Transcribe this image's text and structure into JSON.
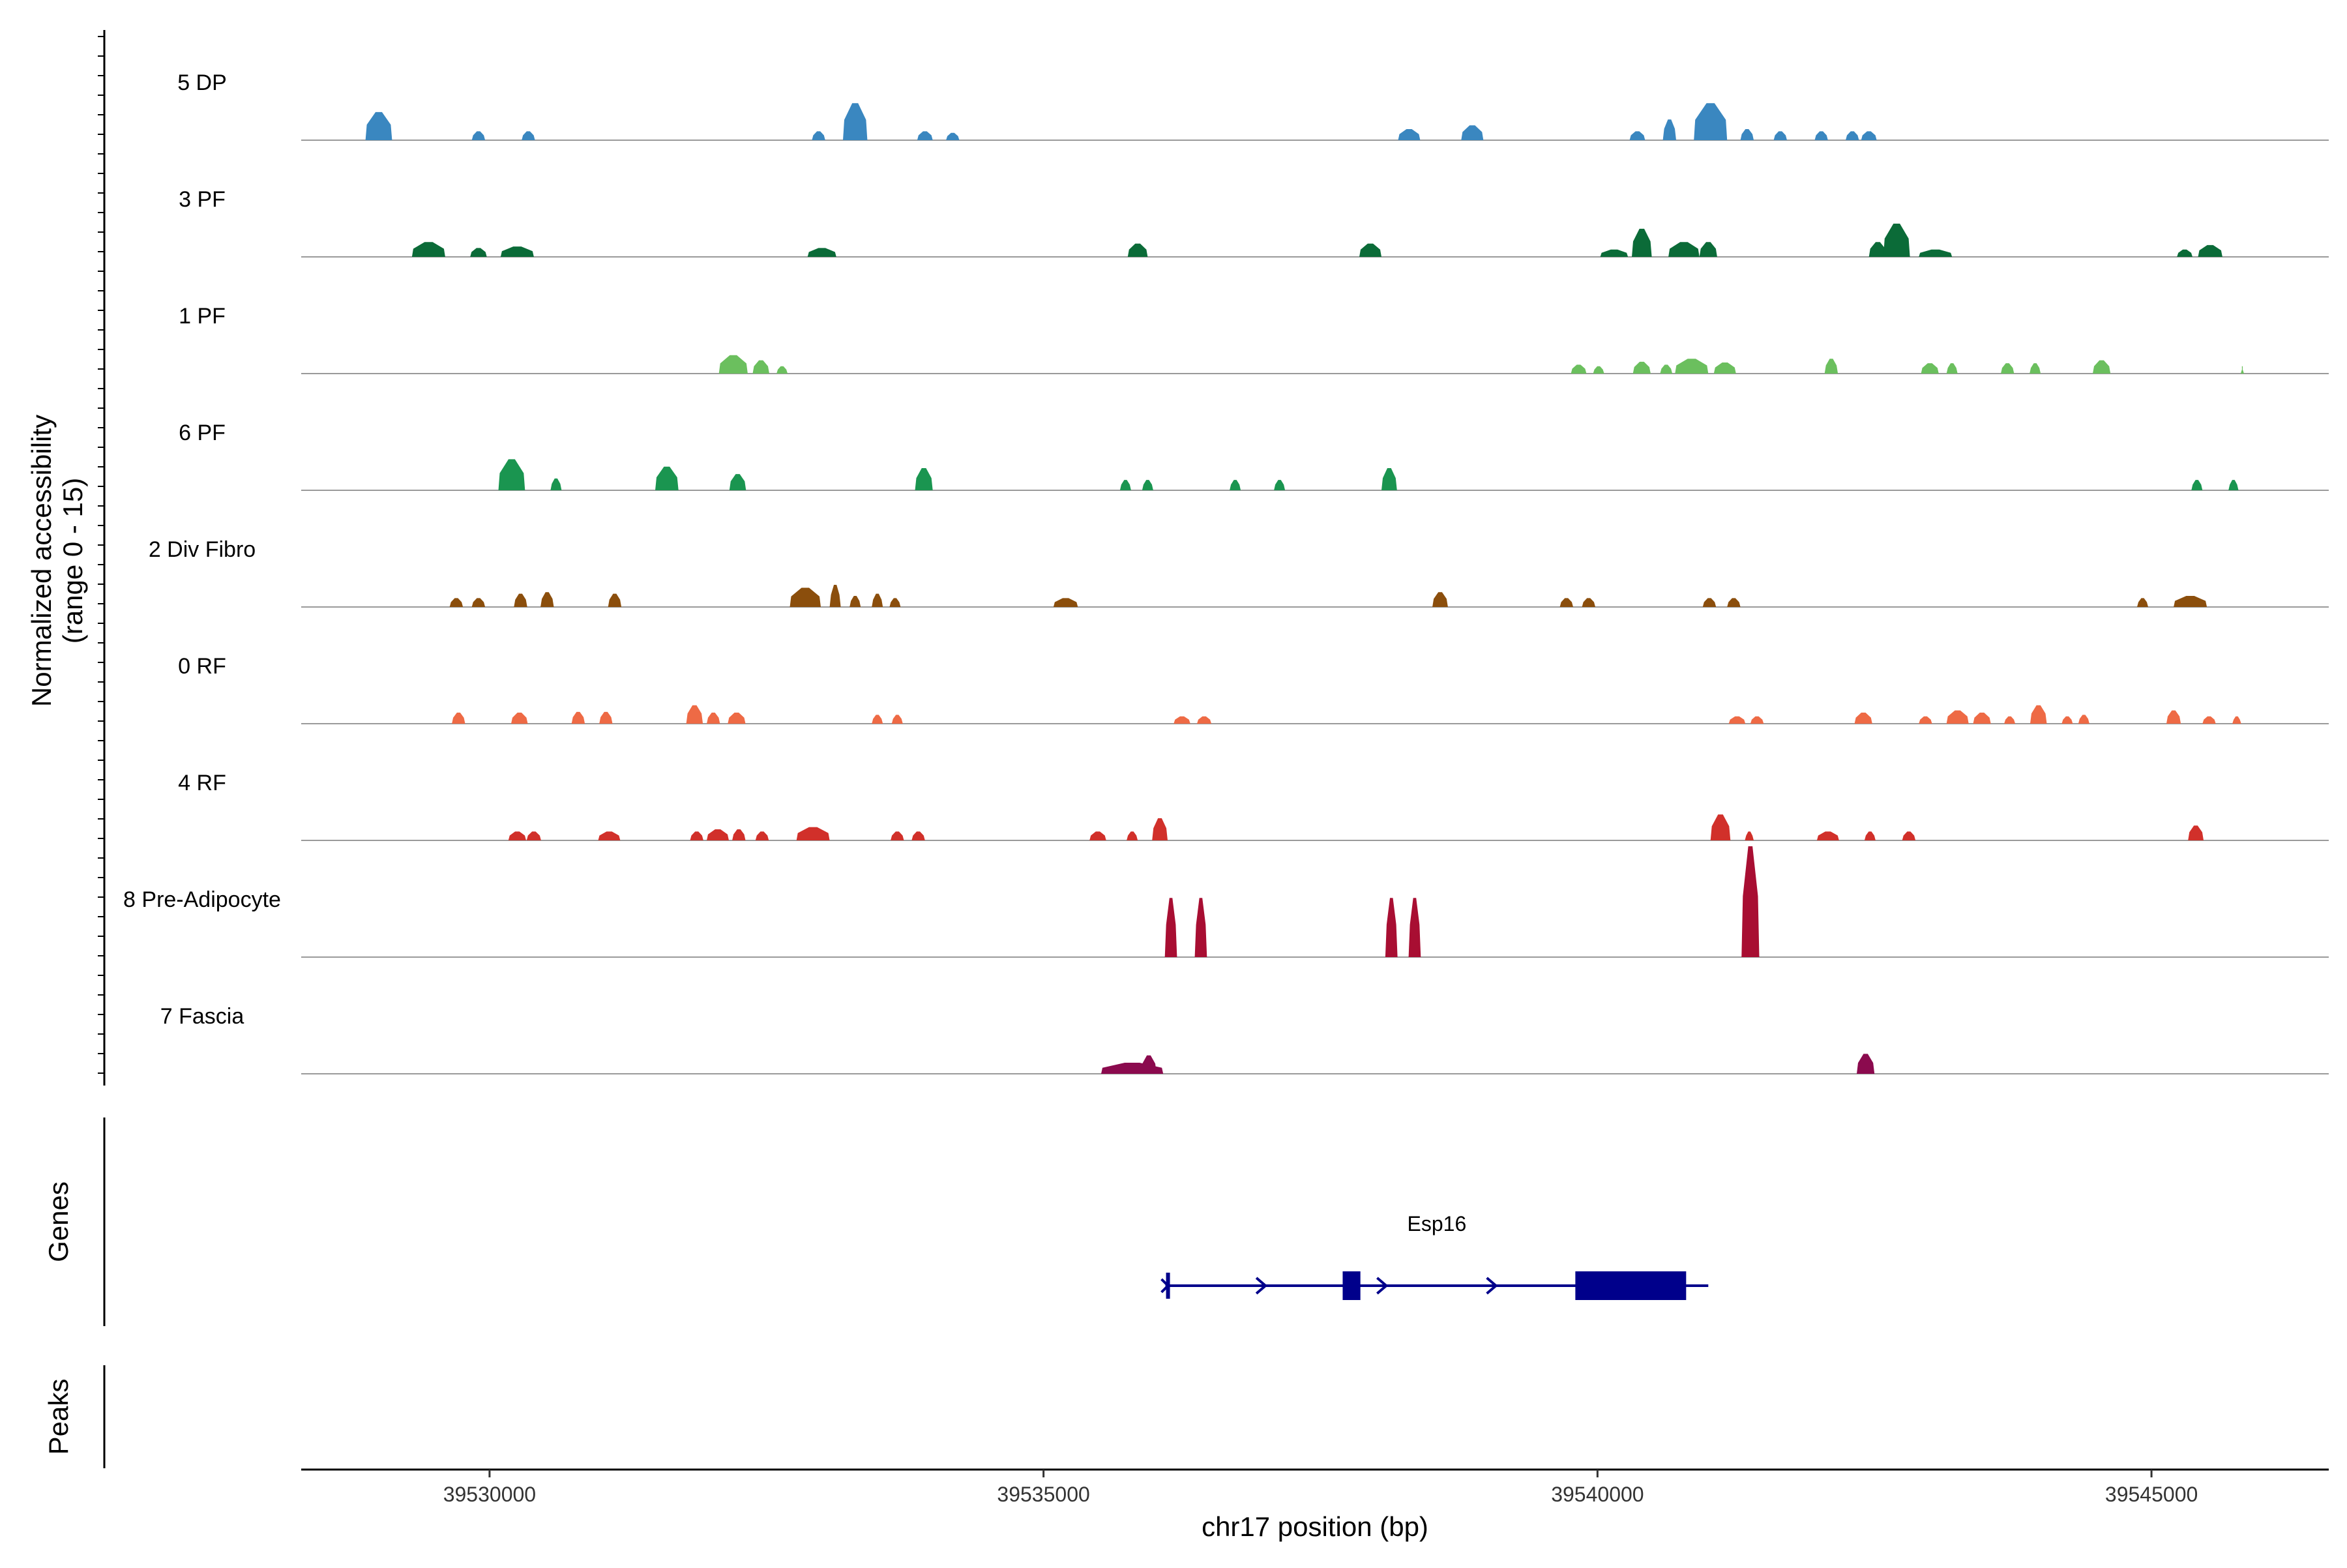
{
  "chart_data": {
    "type": "coverage",
    "title": "",
    "ylabel": "Normalized accessibility\n(range 0 - 15)",
    "xlabel": "chr17 position (bp)",
    "ylim": [
      0,
      15
    ],
    "xlim": [
      39528300,
      39546600
    ],
    "x_ticks": [
      39530000,
      39535000,
      39540000,
      39545000
    ],
    "x_tick_labels": [
      "39530000",
      "39535000",
      "39540000",
      "39545000"
    ],
    "tracks": [
      {
        "name": "5 DP",
        "color": "#3A87C0",
        "peaks": [
          [
            39529000,
            240,
            3.8
          ],
          [
            39529900,
            120,
            1.2
          ],
          [
            39530350,
            120,
            1.2
          ],
          [
            39532970,
            120,
            1.2
          ],
          [
            39533300,
            220,
            5.0
          ],
          [
            39533930,
            140,
            1.2
          ],
          [
            39534180,
            120,
            1.0
          ],
          [
            39538300,
            200,
            1.5
          ],
          [
            39538870,
            200,
            2.0
          ],
          [
            39540360,
            140,
            1.2
          ],
          [
            39540650,
            120,
            2.8
          ],
          [
            39541020,
            300,
            5.0
          ],
          [
            39541350,
            120,
            1.5
          ],
          [
            39541650,
            120,
            1.2
          ],
          [
            39542020,
            120,
            1.2
          ],
          [
            39542300,
            120,
            1.2
          ],
          [
            39542450,
            140,
            1.2
          ]
        ]
      },
      {
        "name": "3 PF",
        "color": "#0B6B38",
        "peaks": [
          [
            39529450,
            300,
            2.0
          ],
          [
            39529900,
            150,
            1.2
          ],
          [
            39530250,
            300,
            1.4
          ],
          [
            39533000,
            260,
            1.2
          ],
          [
            39535850,
            180,
            1.8
          ],
          [
            39537950,
            200,
            1.8
          ],
          [
            39540150,
            250,
            1.0
          ],
          [
            39540400,
            180,
            3.8
          ],
          [
            39540780,
            280,
            2.0
          ],
          [
            39541000,
            160,
            2.0
          ],
          [
            39542530,
            160,
            2.0
          ],
          [
            39542700,
            240,
            4.5
          ],
          [
            39543050,
            300,
            1.0
          ],
          [
            39545300,
            140,
            1.0
          ],
          [
            39545530,
            220,
            1.6
          ]
        ]
      },
      {
        "name": "1 PF",
        "color": "#6BBF5E",
        "peaks": [
          [
            39532200,
            260,
            2.5
          ],
          [
            39532450,
            150,
            1.8
          ],
          [
            39532640,
            100,
            1.0
          ],
          [
            39539830,
            140,
            1.2
          ],
          [
            39540010,
            100,
            1.0
          ],
          [
            39540400,
            160,
            1.6
          ],
          [
            39540620,
            110,
            1.2
          ],
          [
            39540850,
            300,
            2.0
          ],
          [
            39541150,
            200,
            1.5
          ],
          [
            39542110,
            120,
            2.0
          ],
          [
            39543000,
            160,
            1.4
          ],
          [
            39543200,
            100,
            1.4
          ],
          [
            39543700,
            120,
            1.4
          ],
          [
            39543950,
            100,
            1.4
          ],
          [
            39544550,
            160,
            1.8
          ],
          [
            39545820,
            30,
            1.0
          ]
        ]
      },
      {
        "name": "6 PF",
        "color": "#1A9550",
        "peaks": [
          [
            39530200,
            240,
            4.2
          ],
          [
            39530600,
            100,
            1.6
          ],
          [
            39531600,
            210,
            3.2
          ],
          [
            39532240,
            150,
            2.2
          ],
          [
            39533920,
            160,
            3.0
          ],
          [
            39535740,
            100,
            1.4
          ],
          [
            39535940,
            100,
            1.4
          ],
          [
            39536730,
            100,
            1.4
          ],
          [
            39537130,
            100,
            1.4
          ],
          [
            39538120,
            140,
            3.0
          ],
          [
            39545410,
            100,
            1.4
          ],
          [
            39545740,
            90,
            1.4
          ]
        ]
      },
      {
        "name": "2 Div Fibro",
        "color": "#8B4E0C",
        "peaks": [
          [
            39529700,
            120,
            1.2
          ],
          [
            39529900,
            120,
            1.2
          ],
          [
            39530280,
            120,
            1.8
          ],
          [
            39530520,
            120,
            2.0
          ],
          [
            39531130,
            120,
            1.8
          ],
          [
            39532850,
            280,
            2.6
          ],
          [
            39533120,
            100,
            3.0
          ],
          [
            39533300,
            100,
            1.5
          ],
          [
            39533500,
            100,
            1.8
          ],
          [
            39533660,
            100,
            1.2
          ],
          [
            39535200,
            220,
            1.2
          ],
          [
            39538580,
            140,
            2.0
          ],
          [
            39539720,
            120,
            1.2
          ],
          [
            39539920,
            120,
            1.2
          ],
          [
            39541010,
            120,
            1.2
          ],
          [
            39541230,
            120,
            1.2
          ],
          [
            39544920,
            100,
            1.2
          ],
          [
            39545350,
            300,
            1.5
          ]
        ]
      },
      {
        "name": "0 RF",
        "color": "#EE6A45",
        "peaks": [
          [
            39529720,
            120,
            1.5
          ],
          [
            39530270,
            150,
            1.5
          ],
          [
            39530800,
            120,
            1.6
          ],
          [
            39531050,
            120,
            1.6
          ],
          [
            39531850,
            150,
            2.5
          ],
          [
            39532020,
            120,
            1.5
          ],
          [
            39532230,
            160,
            1.5
          ],
          [
            39533500,
            100,
            1.2
          ],
          [
            39533680,
            100,
            1.2
          ],
          [
            39536250,
            150,
            1.0
          ],
          [
            39536450,
            130,
            1.0
          ],
          [
            39541260,
            150,
            1.0
          ],
          [
            39541440,
            120,
            1.0
          ],
          [
            39542400,
            160,
            1.5
          ],
          [
            39542960,
            120,
            1.0
          ],
          [
            39543250,
            200,
            1.8
          ],
          [
            39543470,
            160,
            1.5
          ],
          [
            39543720,
            100,
            1.0
          ],
          [
            39543980,
            150,
            2.5
          ],
          [
            39544240,
            100,
            1.0
          ],
          [
            39544390,
            100,
            1.2
          ],
          [
            39545200,
            130,
            1.8
          ],
          [
            39545520,
            120,
            1.0
          ],
          [
            39545770,
            80,
            1.0
          ]
        ]
      },
      {
        "name": "4 RF",
        "color": "#D1302A",
        "peaks": [
          [
            39530250,
            160,
            1.2
          ],
          [
            39530400,
            130,
            1.2
          ],
          [
            39531080,
            200,
            1.2
          ],
          [
            39531870,
            120,
            1.2
          ],
          [
            39532060,
            200,
            1.5
          ],
          [
            39532250,
            120,
            1.5
          ],
          [
            39532460,
            120,
            1.2
          ],
          [
            39532920,
            300,
            1.8
          ],
          [
            39533680,
            120,
            1.2
          ],
          [
            39533870,
            120,
            1.2
          ],
          [
            39535490,
            150,
            1.2
          ],
          [
            39535800,
            100,
            1.2
          ],
          [
            39536050,
            140,
            3.0
          ],
          [
            39541110,
            180,
            3.5
          ],
          [
            39541370,
            80,
            1.2
          ],
          [
            39542080,
            200,
            1.2
          ],
          [
            39542460,
            100,
            1.2
          ],
          [
            39542810,
            120,
            1.2
          ],
          [
            39545400,
            140,
            2.0
          ]
        ]
      },
      {
        "name": "8 Pre-Adipocyte",
        "color": "#A80E32",
        "peaks": [
          [
            39536150,
            110,
            8.0
          ],
          [
            39536420,
            110,
            8.0
          ],
          [
            39538140,
            110,
            8.0
          ],
          [
            39538350,
            110,
            8.0
          ],
          [
            39541380,
            160,
            15.0
          ]
        ]
      },
      {
        "name": "7 Fascia",
        "color": "#8B0A4E",
        "peaks": [
          [
            39535800,
            560,
            1.5
          ],
          [
            39535950,
            140,
            2.5
          ],
          [
            39542420,
            160,
            2.7
          ]
        ]
      }
    ],
    "genes": [
      {
        "name": "Esp16",
        "strand": "+",
        "start": 39536100,
        "end": 39541000,
        "exons": [
          [
            39537700,
            39537860
          ],
          [
            39539800,
            39540800
          ]
        ],
        "arrows": [
          39536980,
          39538070,
          39539060
        ]
      }
    ],
    "panel_titles": {
      "genes": "Genes",
      "peaks": "Peaks"
    },
    "colors": {
      "baseline": "#9A9A9A",
      "gene": "#00008B"
    }
  }
}
